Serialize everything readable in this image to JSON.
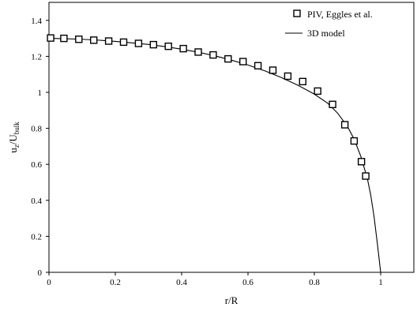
{
  "chart_data": {
    "type": "scatter",
    "xlabel": "r/R",
    "ylabel_main": "u",
    "ylabel_sub1": "z",
    "ylabel_mid": "/U",
    "ylabel_sub2": "bulk",
    "xlim": [
      0,
      1.1
    ],
    "ylim": [
      0,
      1.5
    ],
    "x_ticks": [
      0,
      0.2,
      0.4,
      0.6,
      0.8,
      1
    ],
    "x_tick_labels": [
      "0",
      "0.2",
      "0.4",
      "0.6",
      "0.8",
      "1"
    ],
    "y_ticks": [
      0,
      0.2,
      0.4,
      0.6,
      0.8,
      1,
      1.2,
      1.4
    ],
    "y_tick_labels": [
      "0",
      "0.2",
      "0.4",
      "0.6",
      "0.8",
      "1",
      "1.2",
      "1.4"
    ],
    "grid": false,
    "legend_position": "top-right",
    "series": [
      {
        "name": "PIV, Eggles et al.",
        "kind": "markers",
        "marker": "open-square",
        "color": "#000000",
        "x": [
          0.005,
          0.045,
          0.09,
          0.135,
          0.18,
          0.225,
          0.27,
          0.315,
          0.36,
          0.405,
          0.45,
          0.495,
          0.54,
          0.585,
          0.63,
          0.675,
          0.72,
          0.765,
          0.81,
          0.855,
          0.892,
          0.92,
          0.942,
          0.955
        ],
        "y": [
          1.302,
          1.3,
          1.295,
          1.29,
          1.285,
          1.279,
          1.272,
          1.265,
          1.256,
          1.243,
          1.224,
          1.208,
          1.186,
          1.171,
          1.148,
          1.123,
          1.09,
          1.06,
          1.007,
          0.933,
          0.82,
          0.73,
          0.615,
          0.535
        ]
      },
      {
        "name": "3D model",
        "kind": "line",
        "color": "#000000",
        "x": [
          0,
          0.05,
          0.1,
          0.15,
          0.2,
          0.25,
          0.3,
          0.35,
          0.4,
          0.45,
          0.5,
          0.55,
          0.6,
          0.65,
          0.7,
          0.75,
          0.8,
          0.84,
          0.87,
          0.9,
          0.92,
          0.94,
          0.96,
          0.97,
          0.98,
          0.99,
          1.0
        ],
        "y": [
          1.3,
          1.298,
          1.295,
          1.29,
          1.283,
          1.275,
          1.266,
          1.254,
          1.24,
          1.223,
          1.203,
          1.179,
          1.152,
          1.12,
          1.083,
          1.04,
          0.99,
          0.94,
          0.885,
          0.81,
          0.74,
          0.645,
          0.52,
          0.43,
          0.31,
          0.16,
          0.0
        ]
      }
    ]
  }
}
